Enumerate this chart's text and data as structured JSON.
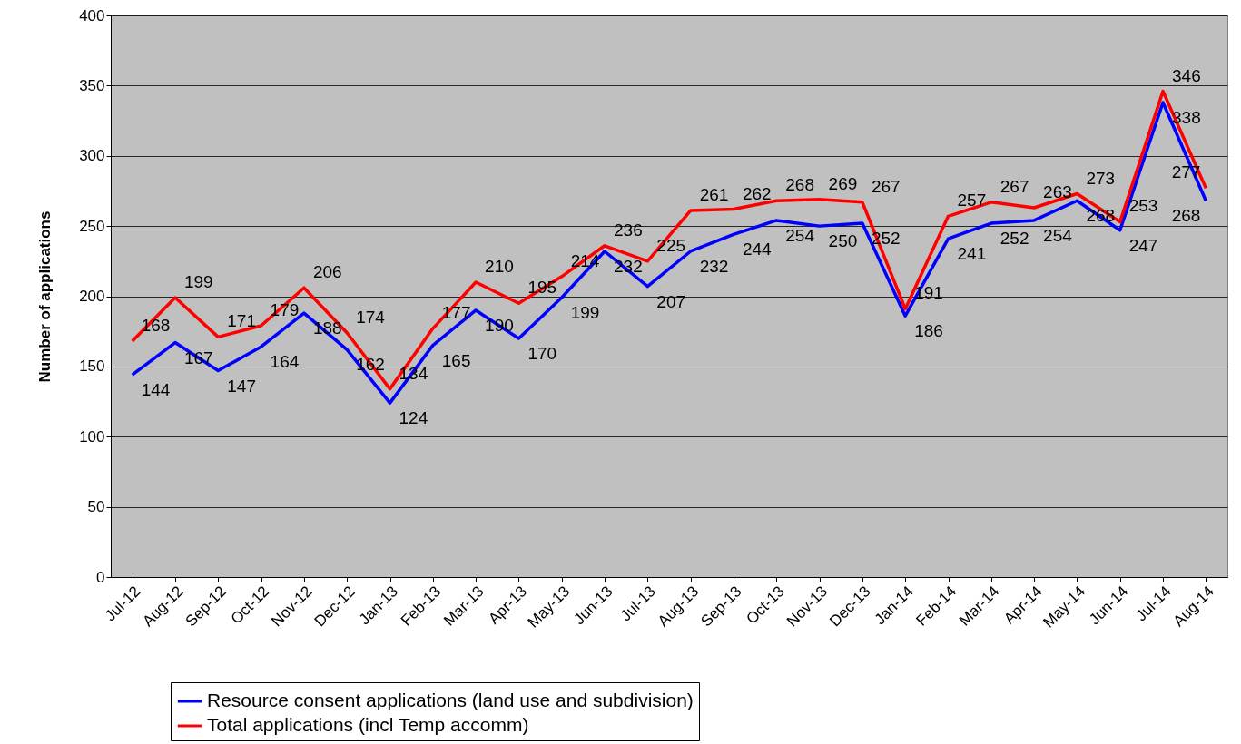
{
  "chart_data": {
    "type": "line",
    "ylabel": "Number of applications",
    "categories": [
      "Jul-12",
      "Aug-12",
      "Sep-12",
      "Oct-12",
      "Nov-12",
      "Dec-12",
      "Jan-13",
      "Feb-13",
      "Mar-13",
      "Apr-13",
      "May-13",
      "Jun-13",
      "Jul-13",
      "Aug-13",
      "Sep-13",
      "Oct-13",
      "Nov-13",
      "Dec-13",
      "Jan-14",
      "Feb-14",
      "Mar-14",
      "Apr-14",
      "May-14",
      "Jun-14",
      "Jul-14",
      "Aug-14"
    ],
    "series": [
      {
        "name": "Resource consent applications (land use and subdivision)",
        "color": "#0000ff",
        "values": [
          144,
          167,
          147,
          164,
          188,
          162,
          124,
          165,
          190,
          170,
          199,
          232,
          207,
          232,
          244,
          254,
          250,
          252,
          186,
          241,
          252,
          254,
          268,
          247,
          338,
          268
        ]
      },
      {
        "name": "Total applications (incl Temp accomm)",
        "color": "#ff0000",
        "values": [
          168,
          199,
          171,
          179,
          206,
          174,
          134,
          177,
          210,
          195,
          214,
          236,
          225,
          261,
          262,
          268,
          269,
          267,
          191,
          257,
          267,
          263,
          273,
          253,
          346,
          277
        ]
      }
    ],
    "ylim": [
      0,
      400
    ],
    "yticks": [
      0,
      50,
      100,
      150,
      200,
      250,
      300,
      350,
      400
    ],
    "grid": "y",
    "legend": "bottom",
    "data_labels": true,
    "marker": "none",
    "line_style": "solid"
  }
}
